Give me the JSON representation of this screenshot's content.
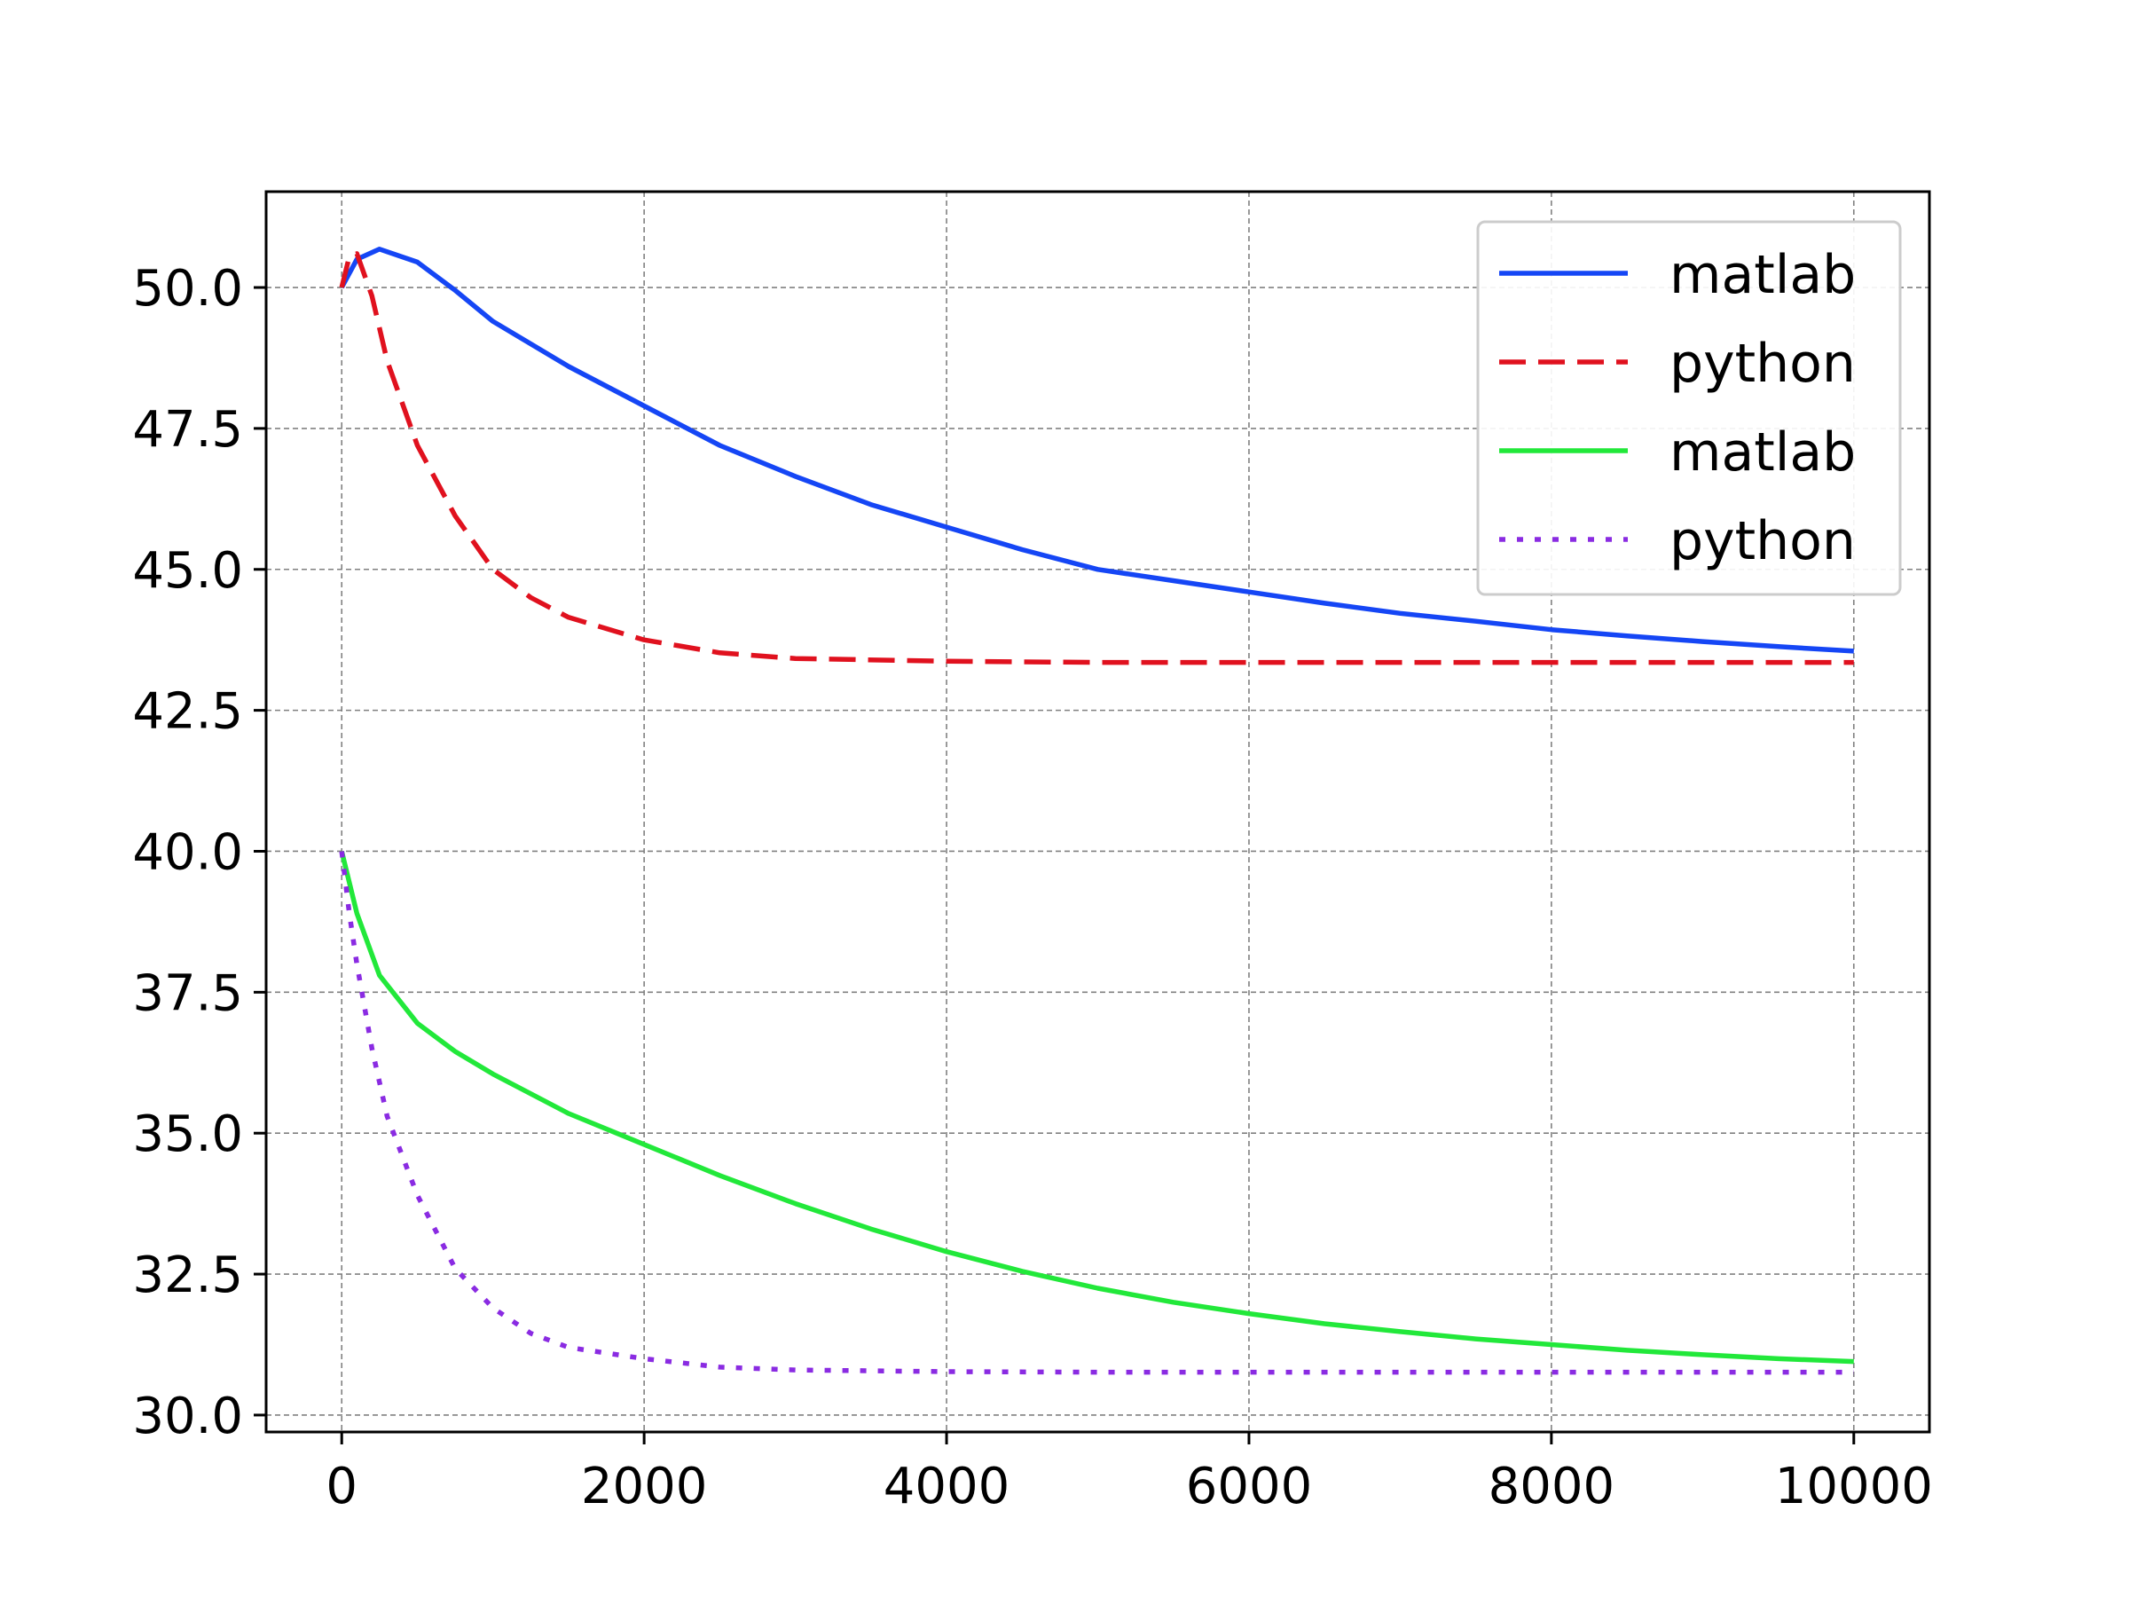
{
  "chart_data": {
    "type": "line",
    "title": "",
    "xlabel": "",
    "ylabel": "",
    "xlim": [
      -500,
      10500
    ],
    "ylim": [
      29.7,
      51.7
    ],
    "xticks": [
      0,
      2000,
      4000,
      6000,
      8000,
      10000
    ],
    "xtick_labels": [
      "0",
      "2000",
      "4000",
      "6000",
      "8000",
      "10000"
    ],
    "yticks": [
      30.0,
      32.5,
      35.0,
      37.5,
      40.0,
      42.5,
      45.0,
      47.5,
      50.0
    ],
    "ytick_labels": [
      "30.0",
      "32.5",
      "35.0",
      "37.5",
      "40.0",
      "42.5",
      "45.0",
      "47.5",
      "50.0"
    ],
    "grid": true,
    "legend_position": "top-right",
    "series": [
      {
        "name": "matlab",
        "color": "#1546f5",
        "style": "solid",
        "x": [
          0,
          100,
          250,
          500,
          750,
          1000,
          1500,
          2000,
          2500,
          3000,
          3500,
          4000,
          4500,
          5000,
          5500,
          6000,
          6500,
          7000,
          7500,
          8000,
          8500,
          9000,
          9500,
          10000
        ],
        "y": [
          50.0,
          50.5,
          50.68,
          50.45,
          49.95,
          49.4,
          48.6,
          47.9,
          47.2,
          46.65,
          46.15,
          45.75,
          45.35,
          45.0,
          44.8,
          44.6,
          44.4,
          44.22,
          44.08,
          43.93,
          43.82,
          43.72,
          43.63,
          43.55
        ]
      },
      {
        "name": "python",
        "color": "#e0111e",
        "style": "dashed",
        "x": [
          0,
          50,
          100,
          200,
          300,
          500,
          750,
          1000,
          1250,
          1500,
          2000,
          2500,
          3000,
          4000,
          5000,
          6000,
          7000,
          8000,
          9000,
          10000
        ],
        "y": [
          50.0,
          50.55,
          50.6,
          49.85,
          48.7,
          47.2,
          45.95,
          45.0,
          44.5,
          44.15,
          43.75,
          43.52,
          43.42,
          43.37,
          43.35,
          43.35,
          43.35,
          43.35,
          43.35,
          43.35
        ]
      },
      {
        "name": "matlab",
        "color": "#22e83a",
        "style": "solid",
        "x": [
          0,
          100,
          250,
          500,
          750,
          1000,
          1500,
          2000,
          2500,
          3000,
          3500,
          4000,
          4500,
          5000,
          5500,
          6000,
          6500,
          7000,
          7500,
          8000,
          8500,
          9000,
          9500,
          10000
        ],
        "y": [
          40.0,
          38.9,
          37.8,
          36.95,
          36.45,
          36.05,
          35.35,
          34.8,
          34.25,
          33.75,
          33.3,
          32.9,
          32.55,
          32.25,
          32.0,
          31.8,
          31.62,
          31.48,
          31.35,
          31.25,
          31.15,
          31.07,
          31.0,
          30.95
        ]
      },
      {
        "name": "python",
        "color": "#8a2be2",
        "style": "dotted",
        "x": [
          0,
          50,
          100,
          200,
          300,
          500,
          750,
          1000,
          1250,
          1500,
          2000,
          2500,
          3000,
          4000,
          5000,
          6000,
          7000,
          8000,
          9000,
          10000
        ],
        "y": [
          40.0,
          38.9,
          38.0,
          36.5,
          35.3,
          33.9,
          32.6,
          31.9,
          31.45,
          31.2,
          31.0,
          30.85,
          30.8,
          30.77,
          30.76,
          30.76,
          30.76,
          30.76,
          30.76,
          30.76
        ]
      }
    ]
  }
}
